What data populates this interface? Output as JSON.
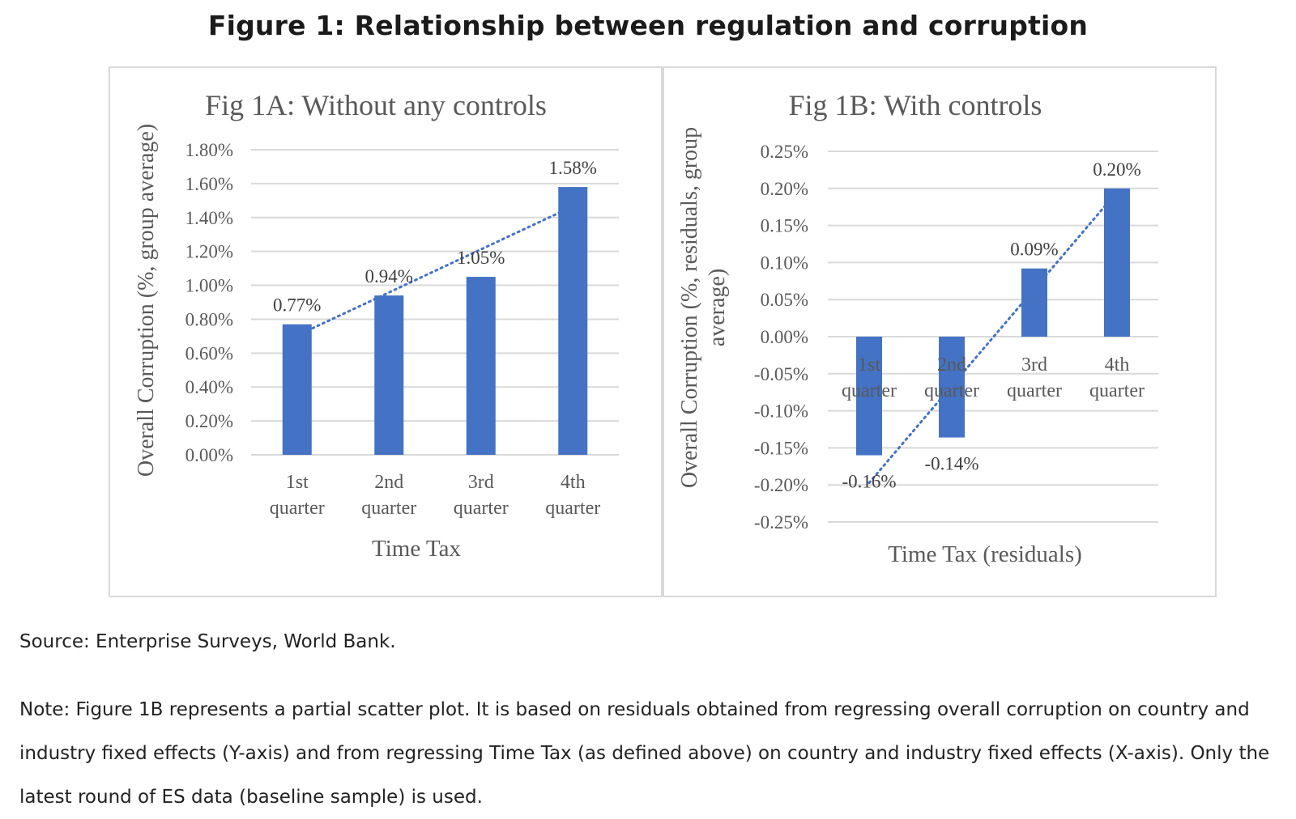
{
  "figure_title": "Figure 1: Relationship between regulation and corruption",
  "source": "Source: Enterprise Surveys, World Bank.",
  "note": "Note: Figure 1B represents a partial scatter plot. It is based on residuals obtained from regressing overall corruption on country and industry fixed effects (Y-axis) and from regressing Time Tax (as defined above) on country and industry fixed effects (X-axis). Only the latest round of ES data (baseline sample) is used.",
  "colors": {
    "bar": "#4472c4",
    "trend": "#4472c4",
    "grid": "#d9d9d9",
    "text": "#595959"
  },
  "chart_data": [
    {
      "type": "bar",
      "title": "Fig 1A: Without any controls",
      "xlabel": "Time Tax",
      "ylabel": "Overall Corruption (%, group average)",
      "categories": [
        [
          "1st",
          "quarter"
        ],
        [
          "2nd",
          "quarter"
        ],
        [
          "3rd",
          "quarter"
        ],
        [
          "4th",
          "quarter"
        ]
      ],
      "values": [
        0.77,
        0.94,
        1.05,
        1.58
      ],
      "data_labels": [
        "0.77%",
        "0.94%",
        "1.05%",
        "1.58%"
      ],
      "ylim": [
        0,
        1.8
      ],
      "yticks": [
        0,
        0.2,
        0.4,
        0.6,
        0.8,
        1.0,
        1.2,
        1.4,
        1.6,
        1.8
      ],
      "ytick_labels": [
        "0.00%",
        "0.20%",
        "0.40%",
        "0.60%",
        "0.80%",
        "1.00%",
        "1.20%",
        "1.40%",
        "1.60%",
        "1.80%"
      ],
      "grid": true,
      "trendline": "linear, dotted"
    },
    {
      "type": "bar",
      "title": "Fig 1B: With controls",
      "xlabel": "Time Tax (residuals)",
      "ylabel": "Overall Corruption (%, residuals, group average)",
      "categories": [
        [
          "1st",
          "quarter"
        ],
        [
          "2nd",
          "quarter"
        ],
        [
          "3rd",
          "quarter"
        ],
        [
          "4th",
          "quarter"
        ]
      ],
      "values": [
        -0.16,
        -0.136,
        0.092,
        0.2
      ],
      "data_labels": [
        "-0.16%",
        "-0.14%",
        "0.09%",
        "0.20%"
      ],
      "ylim": [
        -0.25,
        0.25
      ],
      "yticks": [
        -0.25,
        -0.2,
        -0.15,
        -0.1,
        -0.05,
        0,
        0.05,
        0.1,
        0.15,
        0.2,
        0.25
      ],
      "ytick_labels": [
        "-0.25%",
        "-0.20%",
        "-0.15%",
        "-0.10%",
        "-0.05%",
        "0.00%",
        "0.05%",
        "0.10%",
        "0.15%",
        "0.20%",
        "0.25%"
      ],
      "grid": true,
      "trendline": "linear, dotted"
    }
  ]
}
